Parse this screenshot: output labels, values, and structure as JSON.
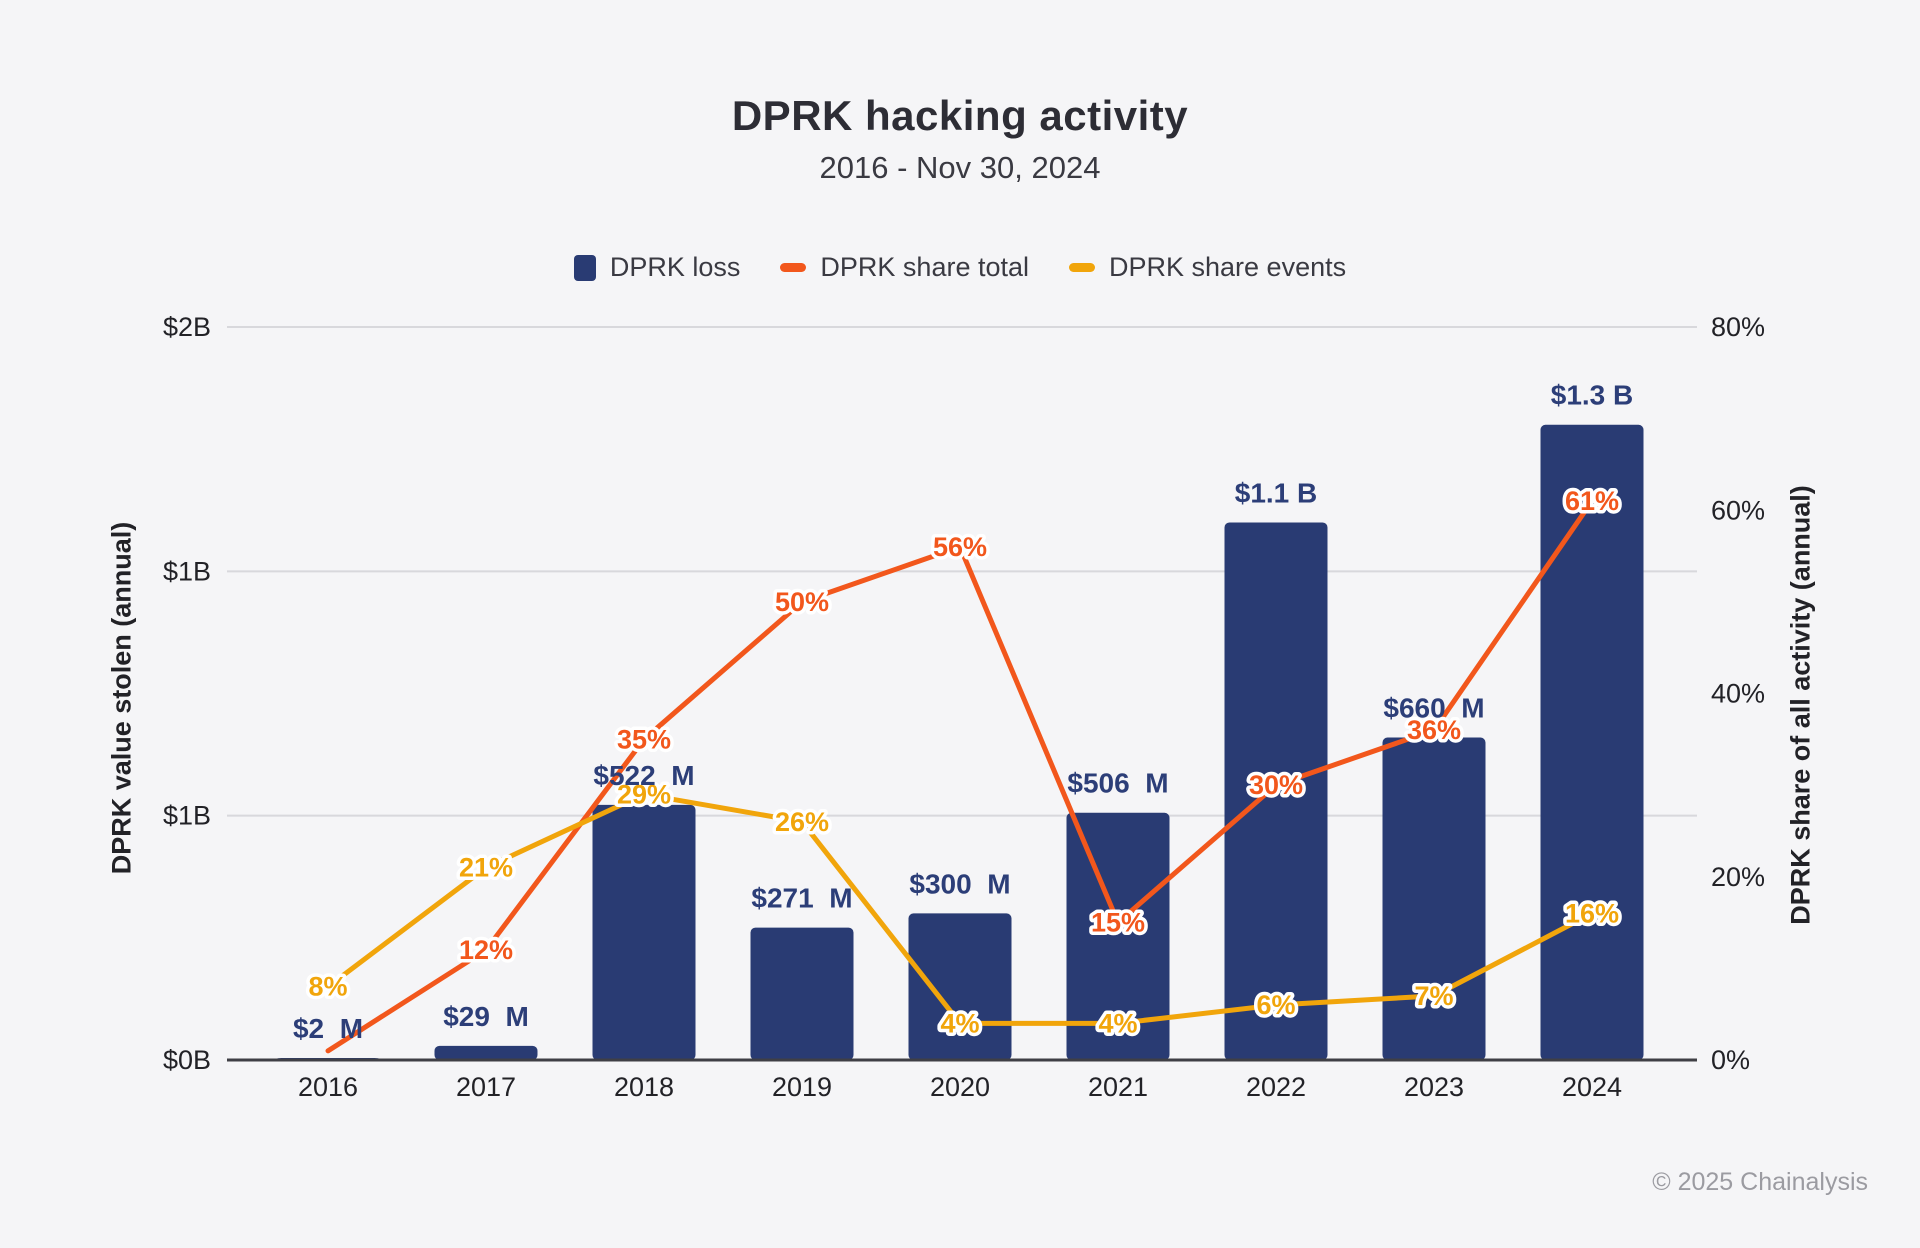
{
  "header": {
    "title": "DPRK hacking activity",
    "subtitle": "2016 - Nov 30, 2024"
  },
  "legend": [
    {
      "label": "DPRK loss",
      "swatch": "square",
      "color": "#293B73"
    },
    {
      "label": "DPRK share total",
      "swatch": "dash",
      "color": "#F2571C"
    },
    {
      "label": "DPRK share events",
      "swatch": "dash",
      "color": "#F1A50B"
    }
  ],
  "footer": {
    "copyright": "© 2025 Chainalysis"
  },
  "colors": {
    "background": "#F5F5F7",
    "bar": "#293B73",
    "bar_label": "#2C3E78",
    "share_total_line": "#F2571C",
    "share_events_line": "#F1A50B",
    "gridline": "#D8D8DC",
    "axis_line": "#3F3F45",
    "tick_text": "#222227",
    "label_halo": "#FFFFFF"
  },
  "chart_data": {
    "type": "bar",
    "combo": "bar + two lines (dual axis)",
    "title": "DPRK hacking activity",
    "subtitle": "2016 - Nov 30, 2024",
    "categories": [
      "2016",
      "2017",
      "2018",
      "2019",
      "2020",
      "2021",
      "2022",
      "2023",
      "2024"
    ],
    "series": [
      {
        "name": "DPRK loss",
        "type": "bar",
        "axis": "left",
        "unit": "USD millions",
        "values": [
          2,
          29,
          522,
          271,
          300,
          506,
          1100,
          660,
          1300
        ],
        "labels": [
          "$2  M",
          "$29  M",
          "$522  M",
          "$271  M",
          "$300  M",
          "$506  M",
          "$1.1 B",
          "$660  M",
          "$1.3 B"
        ]
      },
      {
        "name": "DPRK share total",
        "type": "line",
        "axis": "right",
        "unit": "percent",
        "values": [
          1,
          12,
          35,
          50,
          56,
          15,
          30,
          36,
          61
        ],
        "labels": [
          "",
          "12%",
          "35%",
          "50%",
          "56%",
          "15%",
          "30%",
          "36%",
          "61%"
        ]
      },
      {
        "name": "DPRK share events",
        "type": "line",
        "axis": "right",
        "unit": "percent",
        "values": [
          8,
          21,
          29,
          26,
          4,
          4,
          6,
          7,
          16
        ],
        "labels": [
          "8%",
          "21%",
          "29%",
          "26%",
          "4%",
          "4%",
          "6%",
          "7%",
          "16%"
        ]
      }
    ],
    "left_axis": {
      "title": "DPRK value stolen (annual)",
      "tick_labels": [
        "$2B",
        "$1B",
        "$1B",
        "$0B"
      ],
      "tick_values_billions": [
        1.5,
        1.0,
        0.5,
        0
      ],
      "range_billions": [
        0,
        1.5
      ],
      "grid": true
    },
    "right_axis": {
      "title": "DPRK share of all activity (annual)",
      "tick_labels": [
        "80%",
        "60%",
        "40%",
        "20%",
        "0%"
      ],
      "tick_values_pct": [
        80,
        60,
        40,
        20,
        0
      ],
      "range_pct": [
        0,
        80
      ],
      "grid": false
    },
    "legend_position": "top center"
  }
}
